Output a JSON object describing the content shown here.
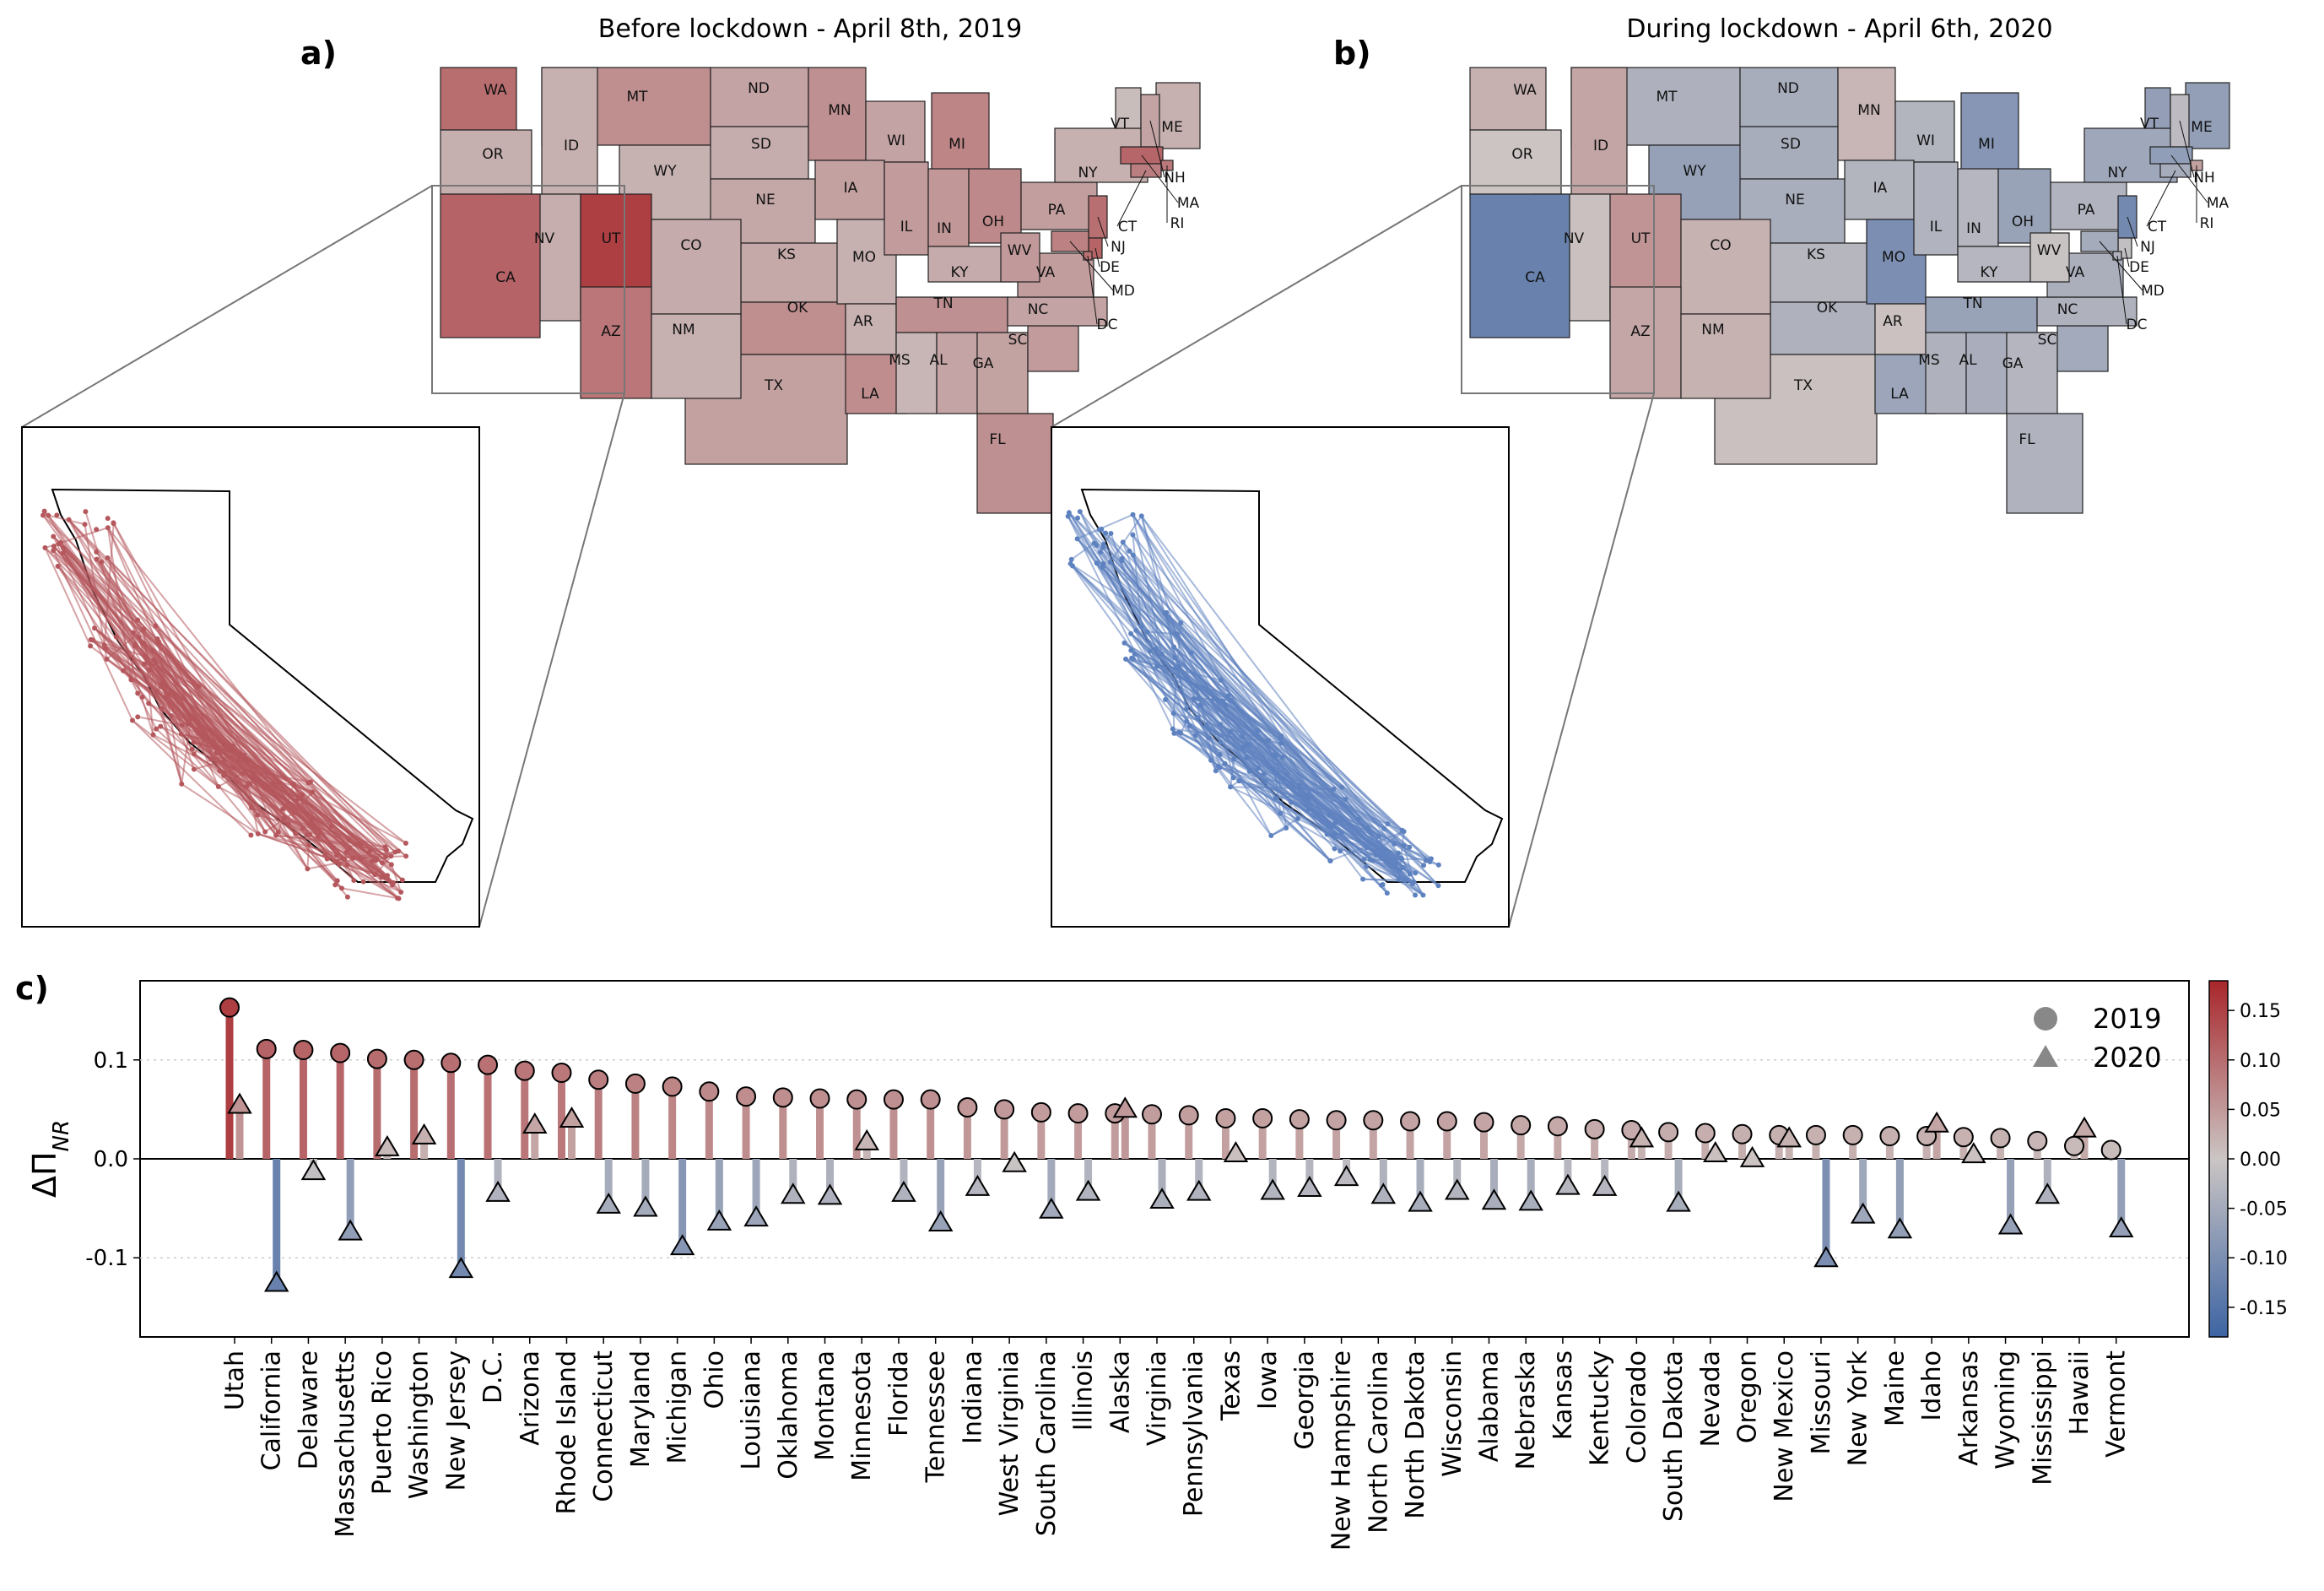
{
  "panels": {
    "a": {
      "label": "a)",
      "title": "Before lockdown - April 8th, 2019"
    },
    "b": {
      "label": "b)",
      "title": "During lockdown - April 6th, 2020"
    },
    "c": {
      "label": "c)"
    }
  },
  "colors": {
    "red": "#a8262b",
    "neutral": "#cbc5c4",
    "blue": "#3d64a3"
  },
  "map_states": [
    "WA",
    "OR",
    "CA",
    "ID",
    "NV",
    "MT",
    "WY",
    "UT",
    "AZ",
    "CO",
    "NM",
    "ND",
    "SD",
    "NE",
    "KS",
    "OK",
    "TX",
    "MN",
    "IA",
    "MO",
    "AR",
    "LA",
    "WI",
    "IL",
    "MI",
    "IN",
    "KY",
    "TN",
    "MS",
    "AL",
    "OH",
    "GA",
    "FL",
    "SC",
    "NC",
    "VA",
    "WV",
    "PA",
    "NY",
    "VT",
    "ME",
    "NH",
    "MA",
    "RI",
    "CT",
    "NJ",
    "DE",
    "MD",
    "DC"
  ],
  "chart_data": {
    "type": "lollipop",
    "ylabel": "ΔΠ_NR",
    "ylim": [
      -0.18,
      0.18
    ],
    "yticks": [
      -0.1,
      0.0,
      0.1
    ],
    "colorbar": {
      "range": [
        -0.18,
        0.18
      ],
      "ticks": [
        0.15,
        0.1,
        0.05,
        0.0,
        -0.05,
        -0.1,
        -0.15
      ]
    },
    "legend": {
      "placement": "top-right",
      "entries": [
        {
          "marker": "circle",
          "label": "2019"
        },
        {
          "marker": "triangle",
          "label": "2020"
        }
      ]
    },
    "categories": [
      "Utah",
      "California",
      "Delaware",
      "Massachusetts",
      "Puerto Rico",
      "Washington",
      "New Jersey",
      "D.C.",
      "Arizona",
      "Rhode Island",
      "Connecticut",
      "Maryland",
      "Michigan",
      "Ohio",
      "Louisiana",
      "Oklahoma",
      "Montana",
      "Minnesota",
      "Florida",
      "Tennessee",
      "Indiana",
      "West Virginia",
      "South Carolina",
      "Illinois",
      "Alaska",
      "Virginia",
      "Pennsylvania",
      "Texas",
      "Iowa",
      "Georgia",
      "New Hampshire",
      "North Carolina",
      "North Dakota",
      "Wisconsin",
      "Alabama",
      "Nebraska",
      "Kansas",
      "Kentucky",
      "Colorado",
      "South Dakota",
      "Nevada",
      "Oregon",
      "New Mexico",
      "Missouri",
      "New York",
      "Maine",
      "Idaho",
      "Arkansas",
      "Wyoming",
      "Mississippi",
      "Hawaii",
      "Vermont"
    ],
    "series": [
      {
        "name": "2019",
        "marker": "circle",
        "values": [
          0.153,
          0.111,
          0.11,
          0.107,
          0.101,
          0.1,
          0.097,
          0.095,
          0.089,
          0.087,
          0.08,
          0.076,
          0.073,
          0.068,
          0.063,
          0.062,
          0.061,
          0.06,
          0.06,
          0.06,
          0.052,
          0.05,
          0.047,
          0.046,
          0.046,
          0.045,
          0.044,
          0.041,
          0.041,
          0.04,
          0.039,
          0.039,
          0.038,
          0.038,
          0.037,
          0.034,
          0.033,
          0.03,
          0.029,
          0.027,
          0.026,
          0.025,
          0.024,
          0.024,
          0.024,
          0.023,
          0.023,
          0.022,
          0.021,
          0.018,
          0.013,
          0.009
        ]
      },
      {
        "name": "2020",
        "marker": "triangle",
        "values": [
          0.055,
          -0.125,
          -0.012,
          -0.073,
          0.012,
          0.024,
          -0.111,
          -0.034,
          0.035,
          0.041,
          -0.046,
          -0.049,
          -0.088,
          -0.063,
          -0.059,
          -0.036,
          -0.037,
          0.018,
          -0.034,
          -0.064,
          -0.028,
          -0.004,
          -0.051,
          -0.033,
          0.051,
          -0.041,
          -0.033,
          0.006,
          -0.032,
          -0.029,
          -0.018,
          -0.036,
          -0.044,
          -0.032,
          -0.042,
          -0.043,
          -0.027,
          -0.028,
          0.021,
          -0.044,
          0.006,
          0.001,
          0.021,
          -0.1,
          -0.056,
          -0.071,
          0.036,
          0.005,
          -0.067,
          -0.036,
          0.031,
          -0.07
        ]
      }
    ]
  }
}
